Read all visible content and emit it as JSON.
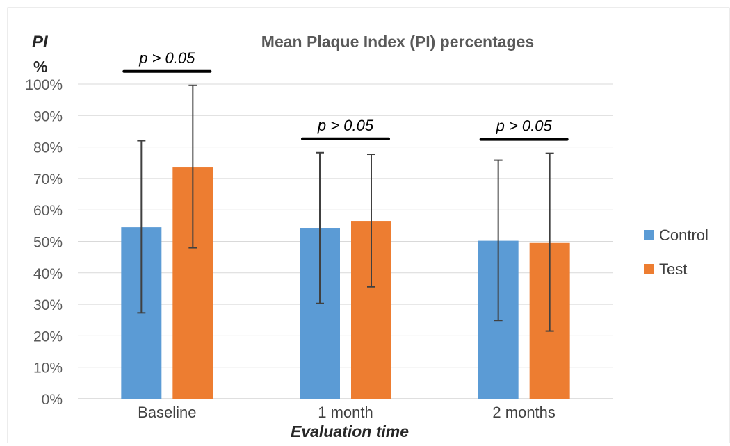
{
  "chart_data": {
    "type": "bar",
    "title": "Mean Plaque Index (PI) percentages",
    "ylabel_line1": "PI",
    "ylabel_line2": "%",
    "xlabel": "Evaluation time",
    "categories": [
      "Baseline",
      "1 month",
      "2 months"
    ],
    "y_ticks": [
      "0%",
      "10%",
      "20%",
      "30%",
      "40%",
      "50%",
      "60%",
      "70%",
      "80%",
      "90%",
      "100%"
    ],
    "ylim": [
      0,
      100
    ],
    "grid": true,
    "legend_position": "right",
    "series": [
      {
        "name": "Control",
        "color": "#5b9bd5",
        "values": [
          54.5,
          54.3,
          50.2
        ],
        "error_low": [
          27.3,
          30.3,
          24.9
        ],
        "error_high": [
          82.0,
          78.2,
          75.8
        ]
      },
      {
        "name": "Test",
        "color": "#ed7d31",
        "values": [
          73.5,
          56.5,
          49.5
        ],
        "error_low": [
          48.0,
          35.6,
          21.5
        ],
        "error_high": [
          99.6,
          77.7,
          78.0
        ]
      }
    ],
    "significance_labels": [
      "p > 0.05",
      "p > 0.05",
      "p > 0.05"
    ]
  }
}
